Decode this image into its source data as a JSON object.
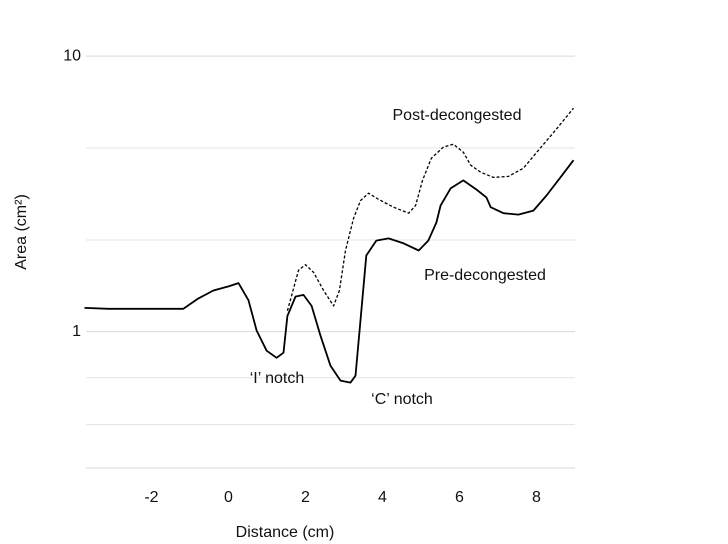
{
  "chart_data": {
    "type": "line",
    "x_label": "Distance (cm)",
    "y_label": "Area (cm²)",
    "xlim": [
      -3.7,
      9
    ],
    "xticks": [
      -2,
      0,
      2,
      4,
      6,
      8
    ],
    "ylim": [
      0.32,
      14.7
    ],
    "yticks": [
      1,
      10
    ],
    "log_y": true,
    "minor_grid": [
      0.46,
      0.68,
      2.15,
      4.64
    ],
    "annotations": [
      "‘I’ notch",
      "‘C’ notch"
    ],
    "series": [
      {
        "name": "Pre-decongested",
        "color": "#000000",
        "dash": false,
        "x": [
          -3.74,
          -3.12,
          -1.17,
          -0.78,
          -0.39,
          0,
          0.26,
          0.52,
          0.73,
          0.99,
          1.25,
          1.43,
          1.53,
          1.74,
          1.95,
          2.16,
          2.39,
          2.65,
          2.91,
          3.17,
          3.3,
          3.43,
          3.58,
          3.84,
          4.16,
          4.55,
          4.94,
          5.19,
          5.4,
          5.51,
          5.77,
          6.1,
          6.44,
          6.7,
          6.81,
          7.14,
          7.53,
          7.92,
          8.26,
          8.62,
          8.96
        ],
        "values": [
          1.22,
          1.21,
          1.21,
          1.32,
          1.41,
          1.46,
          1.5,
          1.3,
          1.01,
          0.853,
          0.804,
          0.839,
          1.14,
          1.34,
          1.36,
          1.24,
          0.967,
          0.752,
          0.664,
          0.653,
          0.692,
          1.1,
          1.89,
          2.14,
          2.18,
          2.09,
          1.97,
          2.14,
          2.49,
          2.87,
          3.31,
          3.54,
          3.28,
          3.07,
          2.83,
          2.69,
          2.66,
          2.75,
          3.12,
          3.63,
          4.19
        ]
      },
      {
        "name": "Post-decongested",
        "color": "#000000",
        "dash": true,
        "x": [
          1.53,
          1.64,
          1.82,
          2.0,
          2.21,
          2.47,
          2.73,
          2.88,
          3.04,
          3.25,
          3.43,
          3.64,
          3.9,
          4.29,
          4.68,
          4.86,
          5.04,
          5.27,
          5.58,
          5.84,
          6.1,
          6.29,
          6.55,
          6.88,
          7.27,
          7.66,
          8.05,
          8.49,
          8.96
        ],
        "values": [
          1.19,
          1.35,
          1.67,
          1.75,
          1.64,
          1.41,
          1.24,
          1.41,
          1.97,
          2.58,
          2.99,
          3.18,
          3.02,
          2.83,
          2.69,
          2.87,
          3.54,
          4.26,
          4.67,
          4.79,
          4.48,
          4.02,
          3.79,
          3.63,
          3.66,
          3.92,
          4.55,
          5.38,
          6.47
        ]
      }
    ]
  }
}
